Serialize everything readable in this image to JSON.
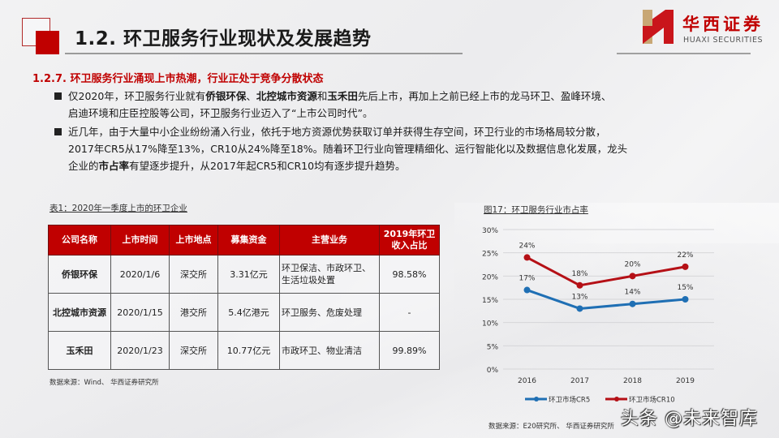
{
  "header": {
    "title": "1.2. 环卫服务行业现状及发展趋势",
    "brand_cn": "华西证券",
    "brand_en": "HUAXI SECURITIES"
  },
  "section": {
    "heading": "1.2.7. 环卫服务行业涌现上市热潮，行业正处于竞争分散状态",
    "bullets": [
      {
        "lines": [
          [
            {
              "t": "仅2020年，环卫服务行业就有",
              "b": false
            },
            {
              "t": "侨银环保",
              "b": true
            },
            {
              "t": "、",
              "b": false
            },
            {
              "t": "北控城市资源",
              "b": true
            },
            {
              "t": "和",
              "b": false
            },
            {
              "t": "玉禾田",
              "b": true
            },
            {
              "t": "先后上市，再加上之前已经上市的龙马环卫、盈峰环境、",
              "b": false
            }
          ],
          [
            {
              "t": "启迪环境和庄臣控股等公司，环卫服务行业迈入了“上市公司时代”。",
              "b": false
            }
          ]
        ]
      },
      {
        "lines": [
          [
            {
              "t": "近几年，由于大量中小企业纷纷涌入行业，依托于地方资源优势获取订单并获得生存空间，环卫行业的市场格局较分散，",
              "b": false
            }
          ],
          [
            {
              "t": "2017年CR5从17%降至13%，CR10从24%降至18%。随着环卫行业向管理精细化、运行智能化以及数据信息化发展，龙头",
              "b": false
            }
          ],
          [
            {
              "t": "企业的",
              "b": false
            },
            {
              "t": "市占率",
              "b": true
            },
            {
              "t": "有望逐步提升，从2017年起CR5和CR10均有逐步提升趋势。",
              "b": false
            }
          ]
        ]
      }
    ]
  },
  "table": {
    "caption": "表1：2020年一季度上市的环卫企业",
    "headers": [
      "公司名称",
      "上市时间",
      "上市地点",
      "募集资金",
      "主营业务",
      "2019年环卫\n收入占比"
    ],
    "rows": [
      [
        "侨银环保",
        "2020/1/6",
        "深交所",
        "3.31亿元",
        "环卫保洁、市政环卫、\n生活垃圾处置",
        "98.58%"
      ],
      [
        "北控城市资源",
        "2020/1/15",
        "港交所",
        "5.4亿港元",
        "环卫服务、危废处理",
        "-"
      ],
      [
        "玉禾田",
        "2020/1/23",
        "深交所",
        "10.77亿元",
        "市政环卫、物业清洁",
        "99.89%"
      ]
    ],
    "source": "数据来源：Wind、 华西证券研究所",
    "header_color": "#c00000"
  },
  "chart": {
    "caption": "图17：环卫服务行业市占率",
    "source": "数据来源：E20研究所、 华西证券研究所"
  },
  "chart_data": {
    "type": "line",
    "title": "图17：环卫服务行业市占率",
    "x": [
      "2016",
      "2017",
      "2018",
      "2019"
    ],
    "series": [
      {
        "name": "环卫市场CR5",
        "values": [
          17,
          13,
          14,
          15
        ],
        "color": "#1f6fb4"
      },
      {
        "name": "环卫市场CR10",
        "values": [
          24,
          18,
          20,
          22
        ],
        "color": "#b51016"
      }
    ],
    "yticks": [
      "0%",
      "5%",
      "10%",
      "15%",
      "20%",
      "25%",
      "30%"
    ],
    "ylim": [
      0,
      30
    ],
    "xlabel": "",
    "ylabel": "",
    "grid": true,
    "legend_position": "bottom",
    "data_labels": true
  },
  "watermark": "头条 @未来智库",
  "colors": {
    "accent_red": "#c00000",
    "cr5_blue": "#1f6fb4",
    "cr10_red": "#b51016"
  }
}
